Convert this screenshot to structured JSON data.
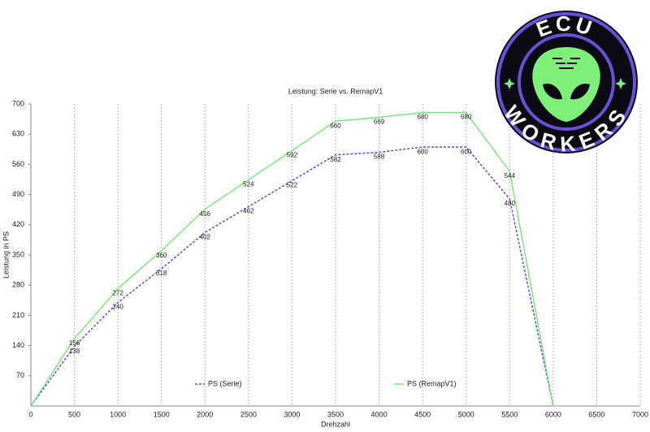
{
  "chart_data": {
    "type": "line",
    "title": "Leistung: Serie vs. RemapV1",
    "x_label": "Drehzahl",
    "y_label": "Leistung in PS",
    "x": [
      0,
      500,
      1000,
      1500,
      2000,
      2500,
      3000,
      3500,
      4000,
      4500,
      5000,
      5500,
      6000
    ],
    "series": [
      {
        "name": "PS (Serie)",
        "color": "#5b4fd6",
        "values": [
          0,
          138,
          240,
          318,
          402,
          462,
          522,
          582,
          588,
          600,
          600,
          480,
          0
        ]
      },
      {
        "name": "PS (RemapV1)",
        "color": "#7de87a",
        "values": [
          0,
          156,
          272,
          360,
          456,
          524,
          592,
          660,
          669,
          680,
          680,
          544,
          0
        ]
      }
    ],
    "xlim": [
      0,
      7000
    ],
    "xticks": [
      0,
      500,
      1000,
      1500,
      2000,
      2500,
      3000,
      3500,
      4000,
      4500,
      5000,
      5500,
      6000,
      6500,
      7000
    ],
    "ylim": [
      0,
      700
    ],
    "yticks": [
      70,
      140,
      210,
      280,
      350,
      420,
      490,
      560,
      630,
      700
    ],
    "grid": true
  },
  "logo": {
    "top": "ECU",
    "bottom": "WORKERS"
  }
}
